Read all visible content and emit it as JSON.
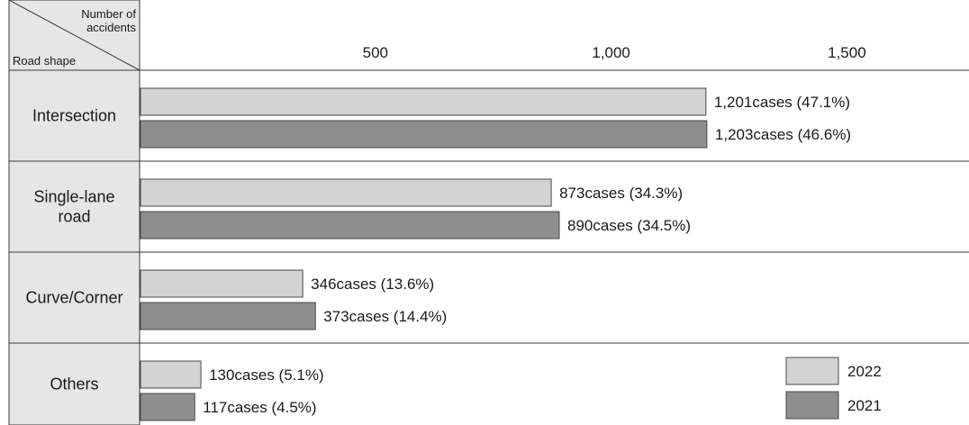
{
  "chart_data": {
    "type": "bar",
    "orientation": "horizontal",
    "title": "",
    "corner": {
      "xlabel": "Number of accidents",
      "xlabel_lines": [
        "Number of",
        "accidents"
      ],
      "ylabel": "Road shape"
    },
    "categories": [
      "Intersection",
      "Single-lane road",
      "Curve/Corner",
      "Others"
    ],
    "category_lines": [
      [
        "Intersection"
      ],
      [
        "Single-lane",
        "road"
      ],
      [
        "Curve/Corner"
      ],
      [
        "Others"
      ]
    ],
    "series": [
      {
        "name": "2022",
        "color": "#d3d3d3",
        "values": [
          1201,
          873,
          346,
          130
        ],
        "labels": [
          "1,201cases (47.1%)",
          "873cases (34.3%)",
          "346cases (13.6%)",
          "130cases (5.1%)"
        ]
      },
      {
        "name": "2021",
        "color": "#8e8e8e",
        "values": [
          1203,
          890,
          373,
          117
        ],
        "labels": [
          "1,203cases (46.6%)",
          "890cases (34.5%)",
          "373cases (14.4%)",
          "117cases (4.5%)"
        ]
      }
    ],
    "xlim": [
      0,
      1750
    ],
    "xticks": [
      500,
      1000,
      1500
    ],
    "xtick_labels": [
      "500",
      "1,000",
      "1,500"
    ],
    "grid": false,
    "legend_position": "bottom-right"
  }
}
